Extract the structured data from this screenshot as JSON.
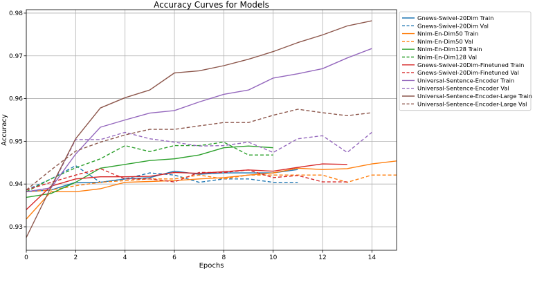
{
  "chart_data": {
    "type": "line",
    "title": "Accuracy Curves for Models",
    "xlabel": "Epochs",
    "ylabel": "Accuracy",
    "xlim": [
      0,
      15
    ],
    "ylim": [
      0.9245,
      0.9808
    ],
    "xticks": [
      0,
      2,
      4,
      6,
      8,
      10,
      12,
      14
    ],
    "xtick_labels": [
      "0",
      "2",
      "4",
      "6",
      "8",
      "10",
      "12",
      "14"
    ],
    "yticks": [
      0.93,
      0.94,
      0.95,
      0.96,
      0.97,
      0.98
    ],
    "ytick_labels": [
      "0.93",
      "0.94",
      "0.95",
      "0.96",
      "0.97",
      "0.98"
    ],
    "grid": true,
    "legend_position": "outside-right",
    "series": [
      {
        "name": "Gnews-Swivel-20Dim Train",
        "color": "#1f77b4",
        "dash": "solid",
        "y": [
          0.9382,
          0.9386,
          0.9404,
          0.9404,
          0.9412,
          0.9415,
          0.943,
          0.9423,
          0.9426,
          0.9426,
          0.9426,
          0.9434
        ]
      },
      {
        "name": "Gnews-Swivel-20Dim Val",
        "color": "#1f77b4",
        "dash": "dashed",
        "y": [
          0.9386,
          0.9412,
          0.9443,
          0.9404,
          0.9412,
          0.9426,
          0.9421,
          0.9404,
          0.9412,
          0.9412,
          0.9404,
          0.9404
        ]
      },
      {
        "name": "Nnlm-En-Dim50 Train",
        "color": "#ff7f0e",
        "dash": "solid",
        "y": [
          0.9318,
          0.9382,
          0.9382,
          0.9389,
          0.9404,
          0.9406,
          0.9408,
          0.9412,
          0.9415,
          0.9421,
          0.9426,
          0.9437,
          0.9434,
          0.9436,
          0.9447,
          0.9454
        ]
      },
      {
        "name": "Nnlm-En-Dim50 Val",
        "color": "#ff7f0e",
        "dash": "dashed",
        "y": [
          0.9382,
          0.9386,
          0.9396,
          0.9404,
          0.9408,
          0.9412,
          0.9412,
          0.9421,
          0.9412,
          0.9421,
          0.9421,
          0.9421,
          0.9421,
          0.9404,
          0.9421,
          0.9421
        ]
      },
      {
        "name": "Nnlm-En-Dim128 Train",
        "color": "#2ca02c",
        "dash": "solid",
        "y": [
          0.9369,
          0.9378,
          0.9404,
          0.9437,
          0.9446,
          0.9455,
          0.9459,
          0.9468,
          0.9485,
          0.9489,
          0.9485
        ]
      },
      {
        "name": "Nnlm-En-Dim128 Val",
        "color": "#2ca02c",
        "dash": "dashed",
        "y": [
          0.9382,
          0.9412,
          0.9438,
          0.9459,
          0.949,
          0.9476,
          0.949,
          0.949,
          0.9498,
          0.9468,
          0.9468
        ]
      },
      {
        "name": "Gnews-Swivel-20Dim-Finetuned Train",
        "color": "#d62728",
        "dash": "solid",
        "y": [
          0.934,
          0.9395,
          0.9412,
          0.9417,
          0.9417,
          0.9418,
          0.9427,
          0.9425,
          0.9429,
          0.9433,
          0.943,
          0.9439,
          0.9447,
          0.9446
        ]
      },
      {
        "name": "Gnews-Swivel-20Dim-Finetuned Val",
        "color": "#d62728",
        "dash": "dashed",
        "y": [
          0.9386,
          0.9404,
          0.9421,
          0.9436,
          0.9412,
          0.9412,
          0.9405,
          0.9427,
          0.9427,
          0.9433,
          0.9415,
          0.942,
          0.9405,
          0.9405
        ]
      },
      {
        "name": "Universal-Sentence-Encoder Train",
        "color": "#9467bd",
        "dash": "solid",
        "y": [
          0.9382,
          0.9391,
          0.947,
          0.9533,
          0.955,
          0.9566,
          0.9572,
          0.9592,
          0.961,
          0.962,
          0.9648,
          0.9658,
          0.967,
          0.9695,
          0.9717
        ]
      },
      {
        "name": "Universal-Sentence-Encoder Val",
        "color": "#9467bd",
        "dash": "dashed",
        "y": [
          0.9382,
          0.9391,
          0.9504,
          0.9504,
          0.9521,
          0.9506,
          0.9498,
          0.9489,
          0.949,
          0.9498,
          0.9474,
          0.9506,
          0.9513,
          0.9474,
          0.9521
        ]
      },
      {
        "name": "Universal-Sentence-Encoder-Large Train",
        "color": "#8c564b",
        "dash": "solid",
        "y": [
          0.9275,
          0.9393,
          0.9506,
          0.9578,
          0.9602,
          0.962,
          0.966,
          0.9665,
          0.9677,
          0.9692,
          0.971,
          0.9731,
          0.9749,
          0.977,
          0.9782
        ]
      },
      {
        "name": "Universal-Sentence-Encoder-Large Val",
        "color": "#8c564b",
        "dash": "dashed",
        "y": [
          0.9386,
          0.9433,
          0.9477,
          0.9498,
          0.9515,
          0.9528,
          0.9528,
          0.9536,
          0.9544,
          0.9544,
          0.9561,
          0.9575,
          0.9567,
          0.956,
          0.9567
        ]
      }
    ]
  }
}
